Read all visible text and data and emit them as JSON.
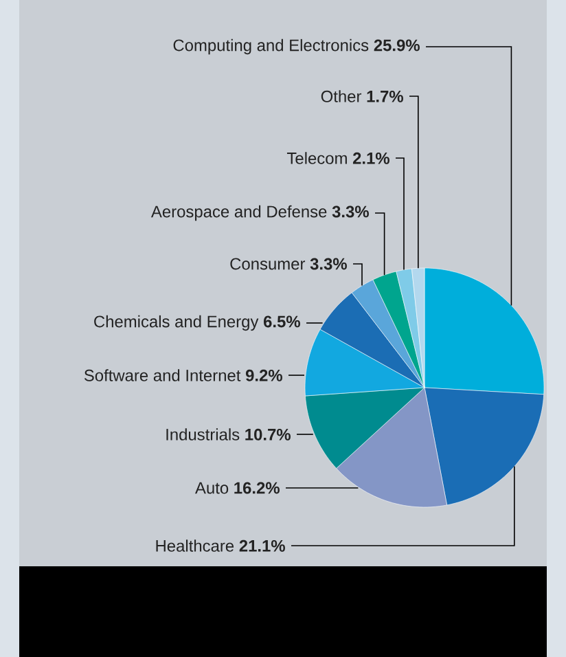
{
  "chart_data": {
    "type": "pie",
    "categories": [
      "Computing and Electronics",
      "Healthcare",
      "Auto",
      "Industrials",
      "Software and Internet",
      "Chemicals and Energy",
      "Consumer",
      "Aerospace and Defense",
      "Telecom",
      "Other"
    ],
    "values": [
      25.9,
      21.1,
      16.2,
      10.7,
      9.2,
      6.5,
      3.3,
      3.3,
      2.1,
      1.7
    ],
    "value_labels": [
      "25.9%",
      "21.1%",
      "16.2%",
      "10.7%",
      "9.2%",
      "6.5%",
      "3.3%",
      "3.3%",
      "2.1%",
      "1.7%"
    ],
    "colors": [
      "#00aedb",
      "#1a6db5",
      "#8496c6",
      "#008b8f",
      "#12a8e0",
      "#1b6db4",
      "#5aa6da",
      "#00a58e",
      "#7fcbe8",
      "#b3d8ee"
    ]
  }
}
